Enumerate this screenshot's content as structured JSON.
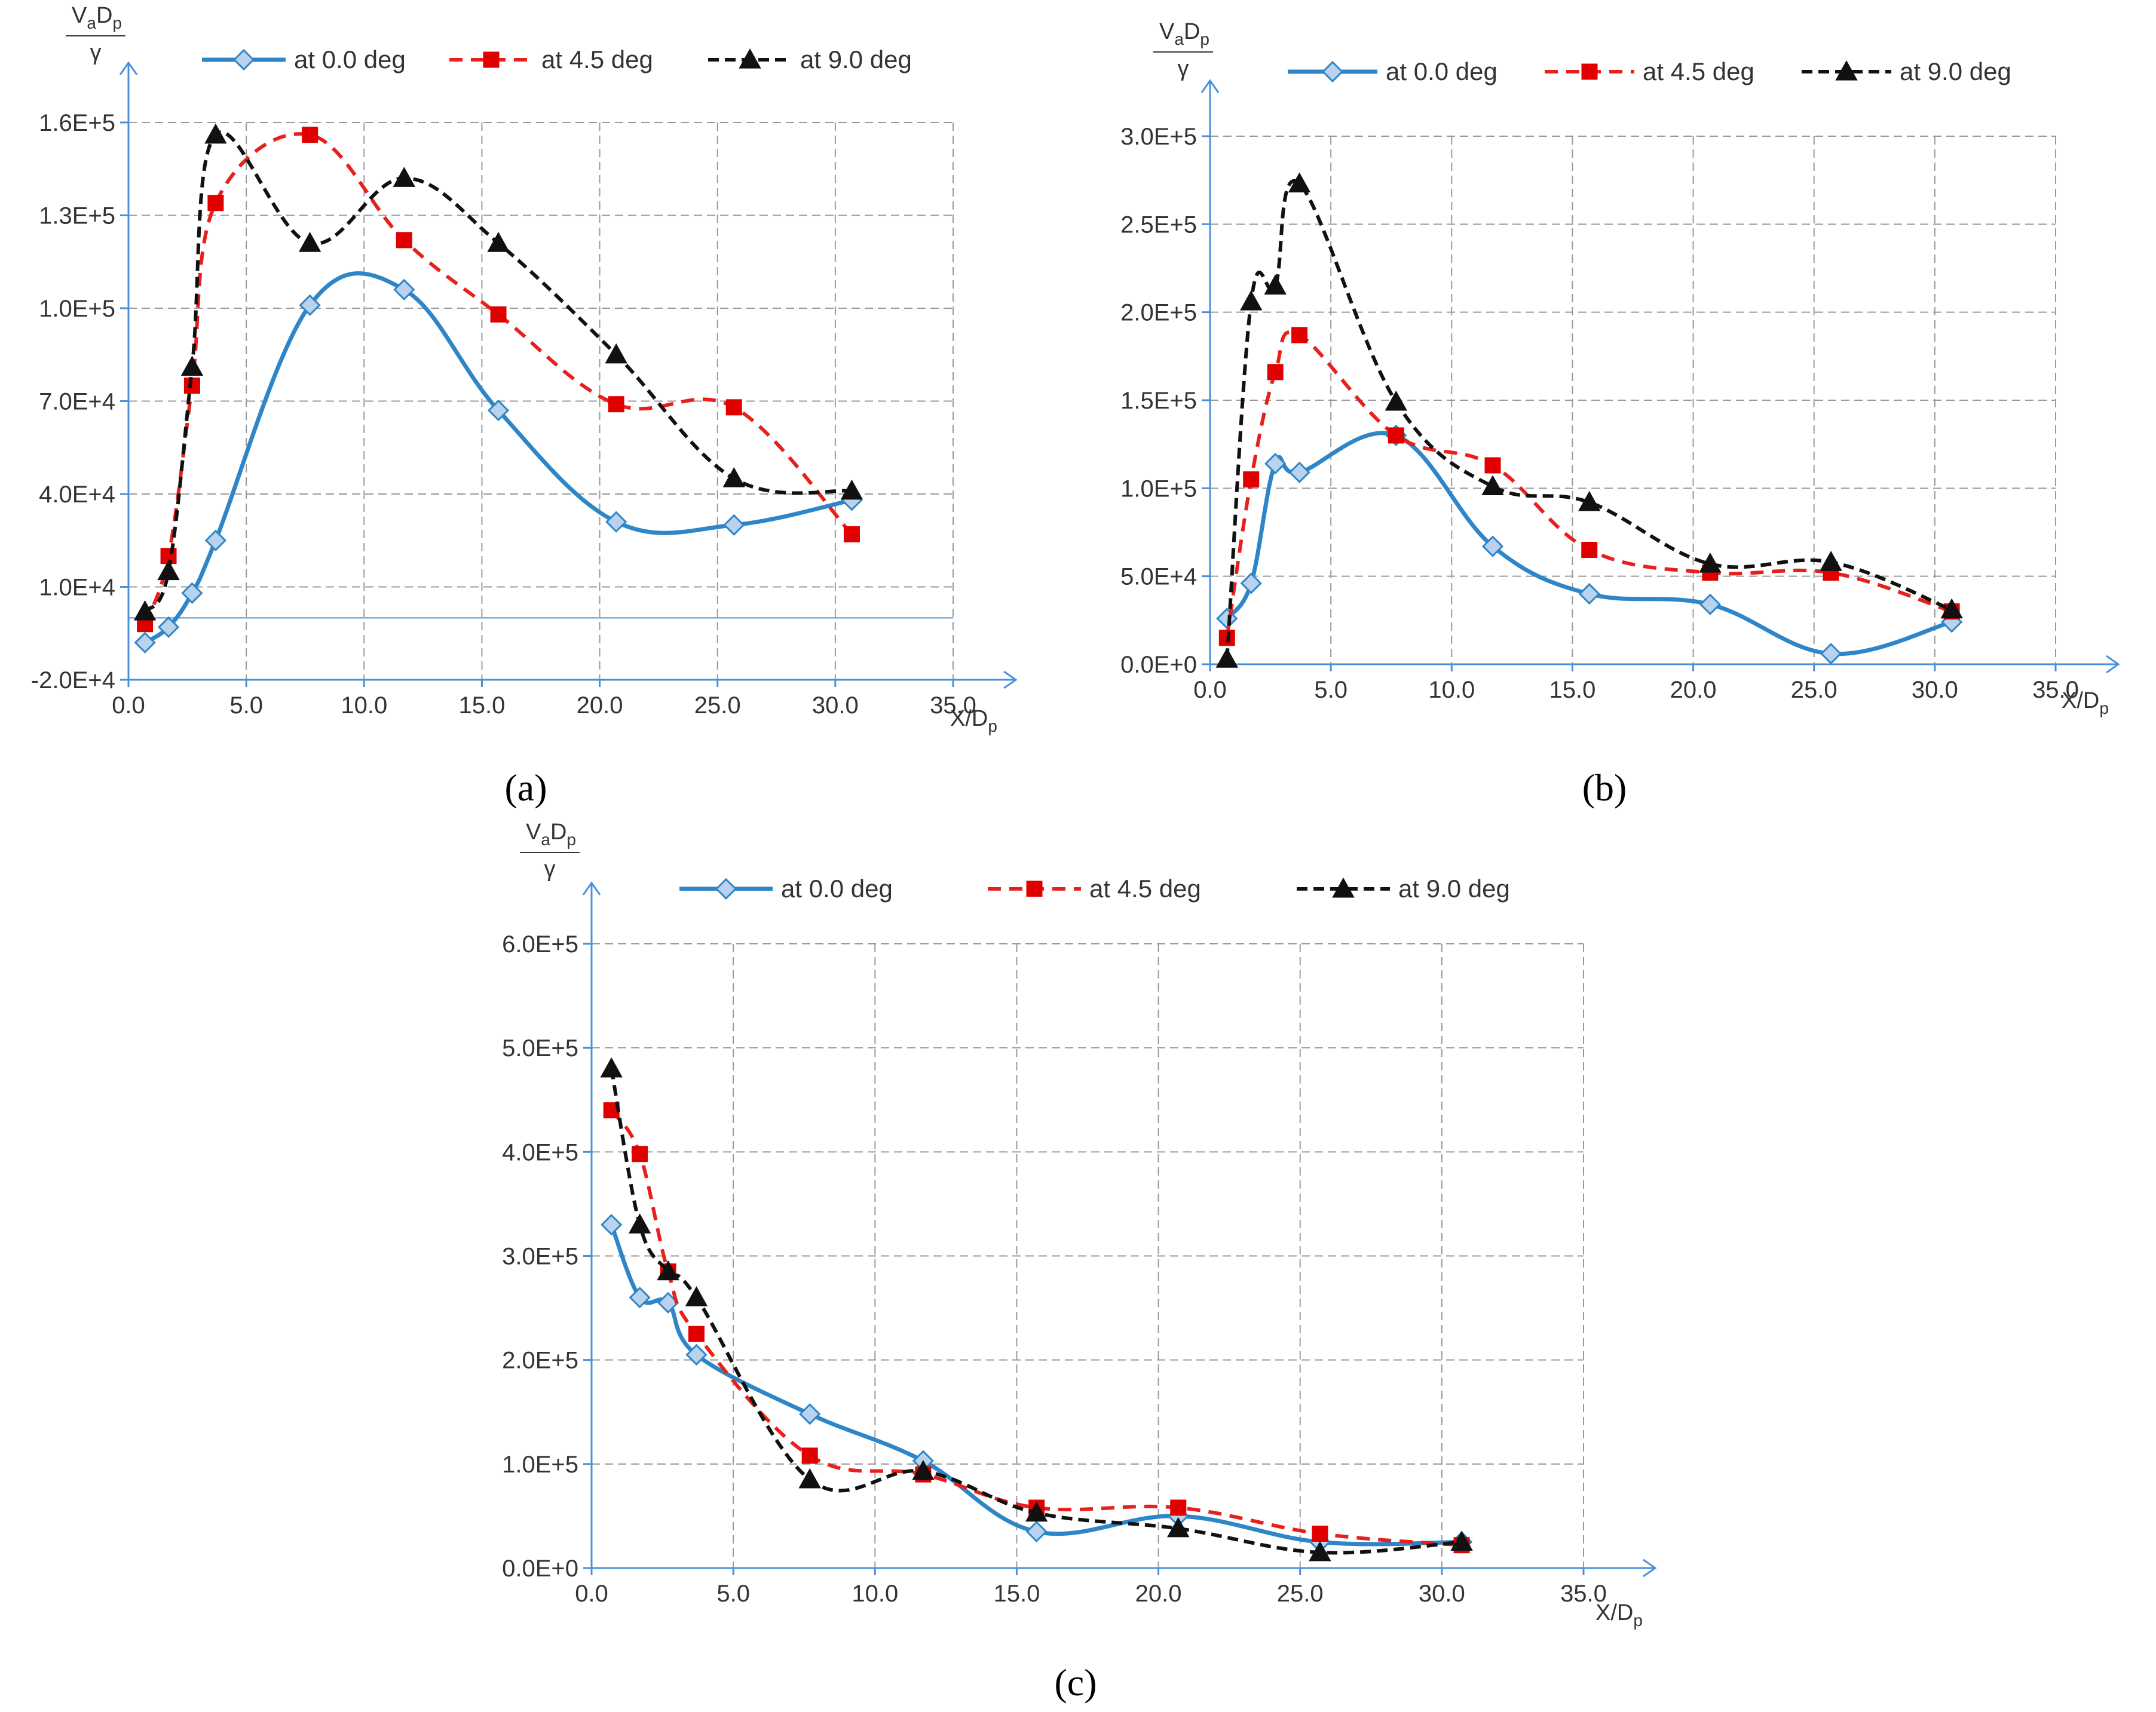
{
  "colors": {
    "series_0": "#2E86C8",
    "series_0_marker_fill": "#B9D3EE",
    "series_45": "#E8201C",
    "series_45_marker": "#E00000",
    "series_90": "#111111",
    "axis": "#4A90D9",
    "grid": "#9A9A9A"
  },
  "chart_data": [
    {
      "type": "line",
      "caption": "(a)",
      "ylabel_numerator": "VaDp",
      "ylabel_denominator": "γ",
      "xlabel": "X/Dp",
      "xlim": [
        0,
        35
      ],
      "ylim": [
        -20000,
        160000
      ],
      "xticks": [
        0,
        5,
        10,
        15,
        20,
        25,
        30,
        35
      ],
      "xtick_labels": [
        "0.0",
        "5.0",
        "10.0",
        "15.0",
        "20.0",
        "25.0",
        "30.0",
        "35.0"
      ],
      "yticks": [
        -20000,
        10000,
        40000,
        70000,
        100000,
        130000,
        160000
      ],
      "ytick_labels": [
        "-2.0E+4",
        "1.0E+4",
        "4.0E+4",
        "7.0E+4",
        "1.0E+5",
        "1.3E+5",
        "1.6E+5"
      ],
      "x": [
        0.7,
        1.7,
        2.7,
        3.7,
        7.7,
        11.7,
        15.7,
        20.7,
        25.7,
        30.7
      ],
      "series": [
        {
          "name": "at 0.0 deg",
          "values": [
            -8000,
            -3000,
            8000,
            25000,
            101000,
            106000,
            67000,
            31000,
            30000,
            38000
          ]
        },
        {
          "name": "at 4.5 deg",
          "values": [
            -2000,
            20000,
            75000,
            134000,
            156000,
            122000,
            98000,
            69000,
            68000,
            27000
          ]
        },
        {
          "name": "at 9.0 deg",
          "values": [
            2000,
            15000,
            81000,
            156000,
            121000,
            142000,
            121000,
            85000,
            45000,
            41000
          ]
        }
      ]
    },
    {
      "type": "line",
      "caption": "(b)",
      "ylabel_numerator": "VaDp",
      "ylabel_denominator": "γ",
      "xlabel": "X/Dp",
      "xlim": [
        0,
        35
      ],
      "ylim": [
        0,
        300000
      ],
      "xticks": [
        0,
        5,
        10,
        15,
        20,
        25,
        30,
        35
      ],
      "xtick_labels": [
        "0.0",
        "5.0",
        "10.0",
        "15.0",
        "20.0",
        "25.0",
        "30.0",
        "35.0"
      ],
      "yticks": [
        0,
        50000,
        100000,
        150000,
        200000,
        250000,
        300000
      ],
      "ytick_labels": [
        "0.0E+0",
        "5.0E+4",
        "1.0E+5",
        "1.5E+5",
        "2.0E+5",
        "2.5E+5",
        "3.0E+5"
      ],
      "x": [
        0.7,
        1.7,
        2.7,
        3.7,
        7.7,
        11.7,
        15.7,
        20.7,
        25.7,
        30.7
      ],
      "series": [
        {
          "name": "at 0.0 deg",
          "values": [
            26000,
            46000,
            114000,
            109000,
            130000,
            67000,
            40000,
            34000,
            6000,
            24000
          ]
        },
        {
          "name": "at 4.5 deg",
          "values": [
            15000,
            105000,
            166000,
            187000,
            130000,
            113000,
            65000,
            52000,
            52000,
            30000
          ]
        },
        {
          "name": "at 9.0 deg",
          "values": [
            3000,
            206000,
            215000,
            273000,
            149000,
            101000,
            92000,
            57000,
            58000,
            31000
          ]
        }
      ]
    },
    {
      "type": "line",
      "caption": "(c)",
      "ylabel_numerator": "VaDp",
      "ylabel_denominator": "γ",
      "xlabel": "X/Dp",
      "xlim": [
        0,
        35
      ],
      "ylim": [
        0,
        600000
      ],
      "xticks": [
        0,
        5,
        10,
        15,
        20,
        25,
        30,
        35
      ],
      "xtick_labels": [
        "0.0",
        "5.0",
        "10.0",
        "15.0",
        "20.0",
        "25.0",
        "30.0",
        "35.0"
      ],
      "yticks": [
        0,
        100000,
        200000,
        300000,
        400000,
        500000,
        600000
      ],
      "ytick_labels": [
        "0.0E+0",
        "1.0E+5",
        "2.0E+5",
        "3.0E+5",
        "4.0E+5",
        "5.0E+5",
        "6.0E+5"
      ],
      "x": [
        0.7,
        1.7,
        2.7,
        3.7,
        7.7,
        11.7,
        15.7,
        20.7,
        25.7,
        30.7
      ],
      "series": [
        {
          "name": "at 0.0 deg",
          "values": [
            330000,
            260000,
            255000,
            205000,
            148000,
            103000,
            35000,
            50000,
            25000,
            25000
          ]
        },
        {
          "name": "at 4.5 deg",
          "values": [
            440000,
            398000,
            285000,
            225000,
            108000,
            90000,
            58000,
            58000,
            33000,
            22000
          ]
        },
        {
          "name": "at 9.0 deg",
          "values": [
            480000,
            330000,
            285000,
            260000,
            85000,
            93000,
            53000,
            38000,
            15000,
            25000
          ]
        }
      ]
    }
  ]
}
